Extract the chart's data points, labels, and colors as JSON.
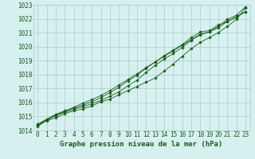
{
  "title": "Graphe pression niveau de la mer (hPa)",
  "x": [
    0,
    1,
    2,
    3,
    4,
    5,
    6,
    7,
    8,
    9,
    10,
    11,
    12,
    13,
    14,
    15,
    16,
    17,
    18,
    19,
    20,
    21,
    22,
    23
  ],
  "line1": [
    1014.3,
    1014.7,
    1014.9,
    1015.2,
    1015.4,
    1015.55,
    1015.75,
    1016.05,
    1016.25,
    1016.55,
    1016.85,
    1017.15,
    1017.45,
    1017.75,
    1018.25,
    1018.75,
    1019.3,
    1019.85,
    1020.3,
    1020.65,
    1021.0,
    1021.45,
    1021.95,
    1022.75
  ],
  "line2": [
    1014.35,
    1014.75,
    1015.05,
    1015.3,
    1015.5,
    1015.7,
    1015.9,
    1016.15,
    1016.45,
    1016.75,
    1017.2,
    1017.6,
    1018.15,
    1018.65,
    1019.1,
    1019.5,
    1019.95,
    1020.45,
    1020.85,
    1021.05,
    1021.45,
    1021.95,
    1022.25,
    1022.85
  ],
  "line3": [
    1014.4,
    1014.75,
    1015.1,
    1015.35,
    1015.6,
    1015.8,
    1016.05,
    1016.35,
    1016.7,
    1017.1,
    1017.55,
    1017.95,
    1018.45,
    1018.9,
    1019.35,
    1019.75,
    1020.15,
    1020.65,
    1021.05,
    1021.15,
    1021.55,
    1021.8,
    1022.1,
    1022.5
  ],
  "line4": [
    1014.45,
    1014.8,
    1015.15,
    1015.4,
    1015.65,
    1015.95,
    1016.2,
    1016.5,
    1016.85,
    1017.25,
    1017.65,
    1018.05,
    1018.5,
    1018.9,
    1019.3,
    1019.7,
    1020.1,
    1020.5,
    1020.9,
    1021.05,
    1021.35,
    1021.8,
    1022.15,
    1022.5
  ],
  "ylim": [
    1014.0,
    1023.0
  ],
  "yticks": [
    1014,
    1015,
    1016,
    1017,
    1018,
    1019,
    1020,
    1021,
    1022,
    1023
  ],
  "xticks": [
    0,
    1,
    2,
    3,
    4,
    5,
    6,
    7,
    8,
    9,
    10,
    11,
    12,
    13,
    14,
    15,
    16,
    17,
    18,
    19,
    20,
    21,
    22,
    23
  ],
  "line_color": "#1a5c1a",
  "bg_color": "#d6f0f0",
  "grid_color": "#b0c8c8",
  "marker": "D",
  "markersize": 1.8,
  "linewidth": 0.6,
  "tick_fontsize": 5.5,
  "xlabel_fontsize": 6.5
}
